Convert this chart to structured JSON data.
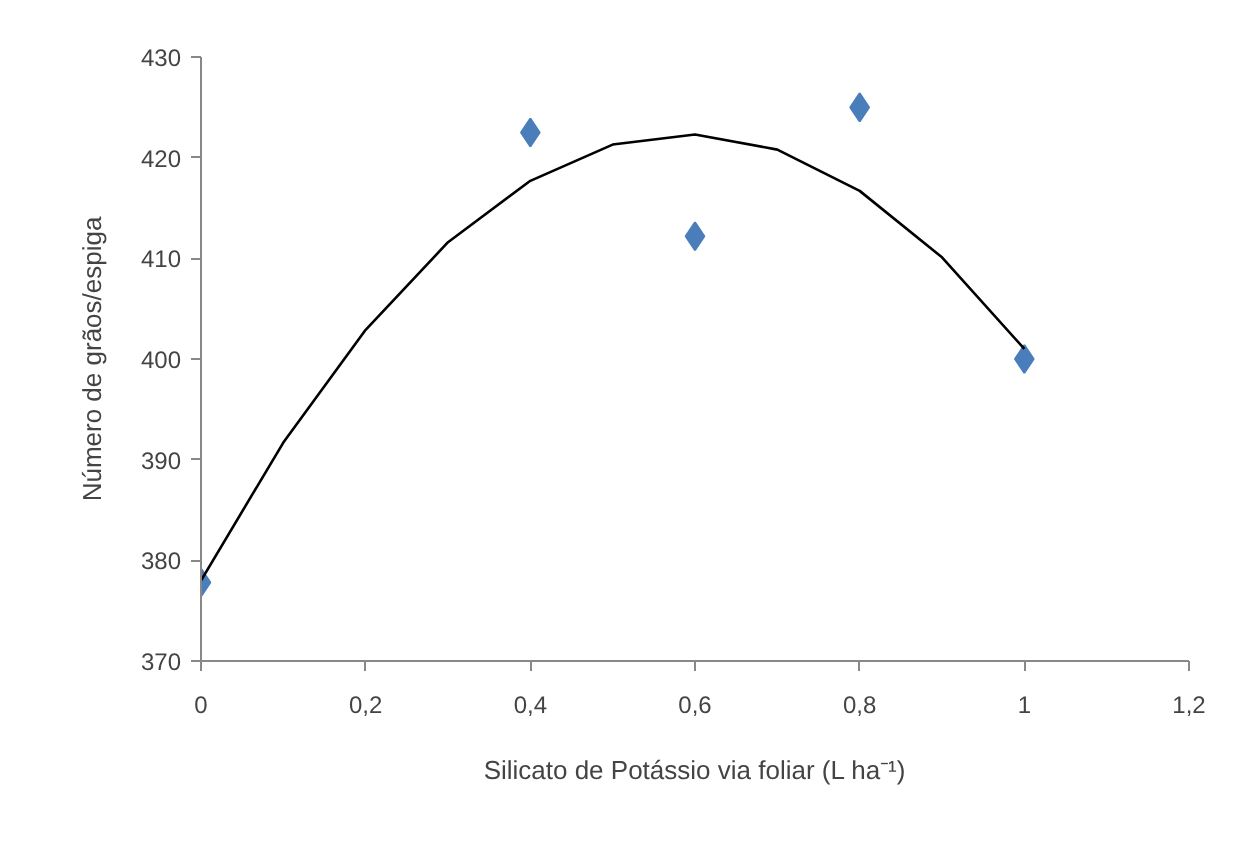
{
  "chart_data": {
    "type": "scatter",
    "xlabel": "Silicato de Potássio via foliar (L ha⁻¹)",
    "ylabel": "Número de grãos/espiga",
    "xlim": [
      0,
      1.2
    ],
    "ylim": [
      370,
      430
    ],
    "xticks": [
      0,
      {
        "value": 0.2,
        "label": "0,2"
      },
      {
        "value": 0.4,
        "label": "0,4"
      },
      {
        "value": 0.6,
        "label": "0,6"
      },
      {
        "value": 0.8,
        "label": "0,8"
      },
      1,
      {
        "value": 1.2,
        "label": "1,2"
      }
    ],
    "yticks": [
      370,
      380,
      390,
      400,
      410,
      420,
      430
    ],
    "grid": false,
    "series": [
      {
        "color": "#4a7ebb",
        "marker": "diamond",
        "x": [
          0,
          0.4,
          0.6,
          0.8,
          1.0
        ],
        "values": [
          377.8,
          422.5,
          412.2,
          425,
          400
        ]
      },
      {
        "type": "line",
        "color": "#000000",
        "marker": "none",
        "line_style": "solid",
        "x": [
          0,
          0.1,
          0.2,
          0.3,
          0.4,
          0.5,
          0.6,
          0.7,
          0.8,
          0.9,
          1.0
        ],
        "values": [
          378,
          391.7,
          402.9,
          411.6,
          417.7,
          421.3,
          422.3,
          420.8,
          416.7,
          410.1,
          401
        ]
      }
    ]
  }
}
